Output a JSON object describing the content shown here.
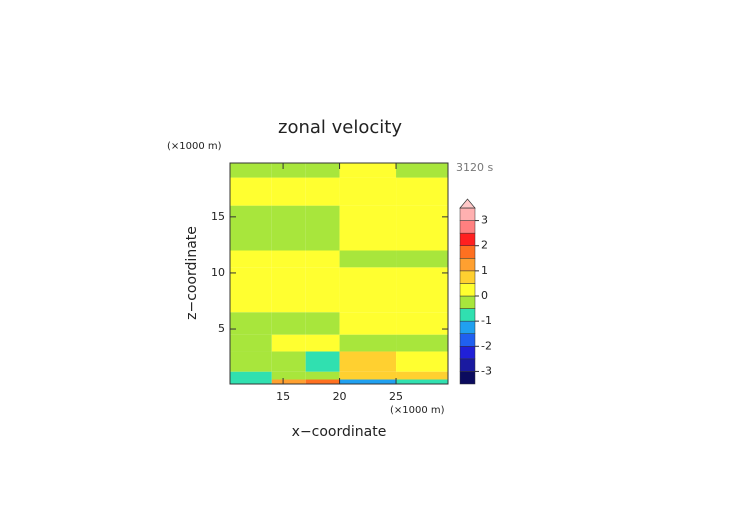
{
  "chart_data": {
    "type": "contour",
    "title": "zonal velocity",
    "x_label": "x−coordinate",
    "y_label": "z−coordinate",
    "x_unit": "(×1000 m)",
    "y_unit": "(×1000 m)",
    "time_label": "3120 s",
    "xlim": [
      10.3,
      29.6
    ],
    "ylim": [
      0.1,
      19.8
    ],
    "xticks": [
      15,
      20,
      25
    ],
    "yticks": [
      5,
      10,
      15
    ],
    "x_edges": [
      10.3,
      14,
      17,
      20,
      25,
      29.6
    ],
    "y_edges": [
      0.1,
      0.5,
      1.2,
      3,
      4.5,
      6.5,
      10.5,
      12,
      16,
      18.5,
      19.8
    ],
    "values": [
      [
        -0.75,
        1.25,
        1.75,
        -1.25,
        -0.75
      ],
      [
        -0.75,
        -0.25,
        -0.25,
        0.75,
        0.75
      ],
      [
        -0.25,
        -0.25,
        -0.75,
        0.75,
        0.25
      ],
      [
        -0.25,
        0.25,
        0.25,
        -0.25,
        -0.25
      ],
      [
        -0.25,
        -0.25,
        -0.25,
        0.25,
        0.25
      ],
      [
        0.25,
        0.25,
        0.25,
        0.25,
        0.25
      ],
      [
        0.25,
        0.25,
        0.25,
        -0.25,
        -0.25
      ],
      [
        -0.25,
        -0.25,
        -0.25,
        0.25,
        0.25
      ],
      [
        0.25,
        0.25,
        0.25,
        0.25,
        0.25
      ],
      [
        -0.25,
        -0.25,
        -0.25,
        0.25,
        -0.25
      ]
    ],
    "levels": [
      -3.5,
      -3,
      -2.5,
      -2,
      -1.5,
      -1,
      -0.5,
      0,
      0.5,
      1,
      1.5,
      2,
      2.5,
      3,
      3.5
    ],
    "colors": [
      "#0b0b5e",
      "#1a1aa0",
      "#2020d8",
      "#2060f0",
      "#20a0f0",
      "#30e0b0",
      "#a8e63c",
      "#ffff30",
      "#ffd030",
      "#ffa030",
      "#ff7020",
      "#ff2020",
      "#ff8080",
      "#ffb0b0"
    ],
    "extend_color": "#ffc8c8",
    "colorbar_ticks": [
      -3,
      -2,
      -1,
      0,
      1,
      2,
      3
    ]
  }
}
